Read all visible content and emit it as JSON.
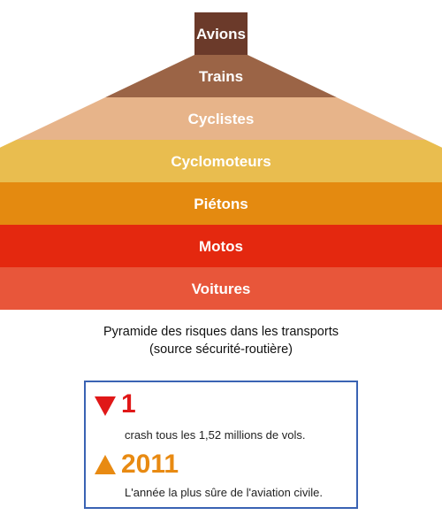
{
  "pyramid": {
    "layers": [
      {
        "label": "Avions",
        "color": "#6b3a2a"
      },
      {
        "label": "Trains",
        "color": "#9b6446"
      },
      {
        "label": "Cyclistes",
        "color": "#e7b48a"
      },
      {
        "label": "Cyclomoteurs",
        "color": "#e9bd4f"
      },
      {
        "label": "Piétons",
        "color": "#e48a10"
      },
      {
        "label": "Motos",
        "color": "#e4280f"
      },
      {
        "label": "Voitures",
        "color": "#e8563a"
      }
    ]
  },
  "caption": {
    "line1": "Pyramide des risques dans les transports",
    "line2": "(source sécurité-routière)"
  },
  "stats": {
    "border_color": "#3a63b3",
    "items": [
      {
        "icon": "triangle-down-icon",
        "color": "#e01818",
        "value": "1",
        "description": "crash tous les 1,52 millions de vols."
      },
      {
        "icon": "triangle-up-icon",
        "color": "#e88a12",
        "value": "2011",
        "description": "L'année  la plus sûre de l'aviation civile."
      }
    ]
  }
}
